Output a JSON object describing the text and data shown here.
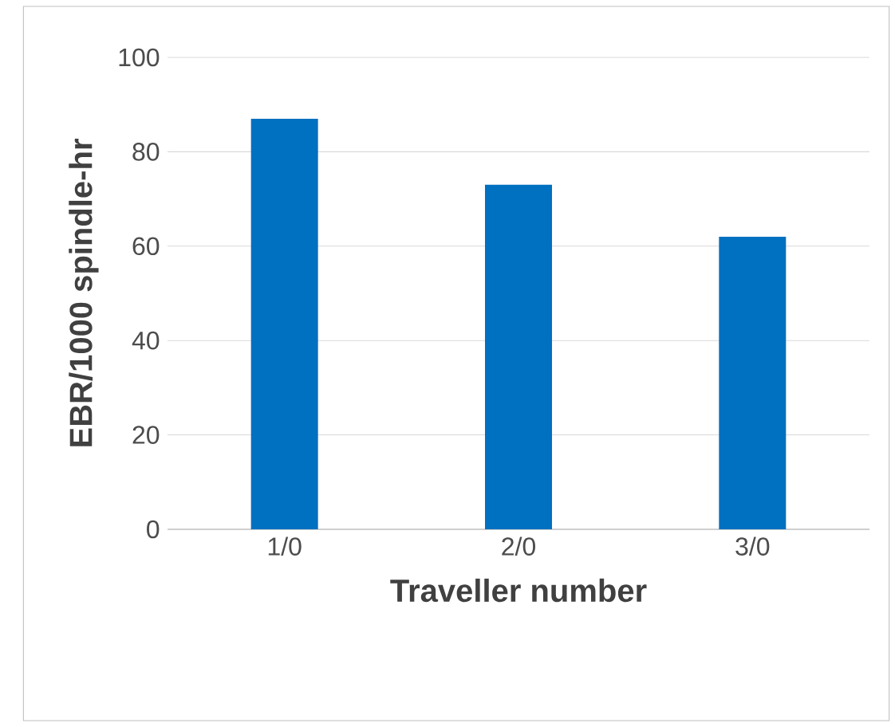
{
  "chart_data": {
    "type": "bar",
    "categories": [
      "1/0",
      "2/0",
      "3/0"
    ],
    "values": [
      87,
      73,
      62
    ],
    "color": "#0070c0",
    "ylim": [
      0,
      100
    ],
    "yticks": [
      0,
      20,
      40,
      60,
      80,
      100
    ],
    "xlabel": "Traveller number",
    "ylabel": "EBR/1000 spindle-hr",
    "grid": "y"
  }
}
